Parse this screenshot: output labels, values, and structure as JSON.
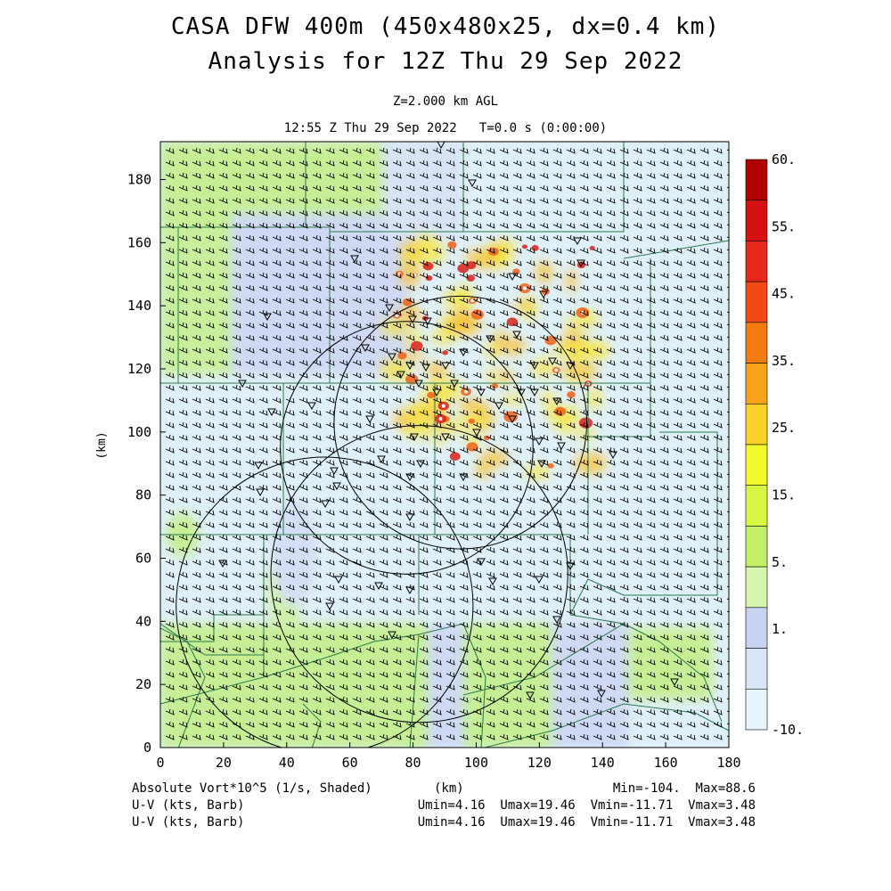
{
  "header": {
    "title_line1": "CASA DFW 400m (450x480x25, dx=0.4 km)",
    "title_line2": "Analysis for 12Z Thu 29 Sep 2022",
    "level": "Z=2.000 km AGL",
    "valid_time": "12:55 Z Thu 29 Sep 2022   T=0.0 s (0:00:00)"
  },
  "axes": {
    "x_label": "(km)",
    "y_label": "(km)",
    "x_range": [
      0,
      180
    ],
    "y_range": [
      0,
      192
    ],
    "x_ticks": [
      "0",
      "20",
      "40",
      "60",
      "80",
      "100",
      "120",
      "140",
      "160",
      "180"
    ],
    "y_ticks": [
      "0",
      "20",
      "40",
      "60",
      "80",
      "100",
      "120",
      "140",
      "160",
      "180"
    ]
  },
  "colorbar": {
    "labels": [
      "60.",
      "55.",
      "45.",
      "35.",
      "25.",
      "15.",
      "5.",
      "1.",
      "-10."
    ],
    "colors": [
      "#b00000",
      "#d41010",
      "#e8281a",
      "#f24a14",
      "#f57a10",
      "#f9a31a",
      "#fad228",
      "#f4f92e",
      "#d8f745",
      "#c2f066",
      "#d6f6b0",
      "#c6d4f2",
      "#d8e6f6",
      "#e6f4fb"
    ]
  },
  "footer": {
    "field1": "Absolute Vort*10^5 (1/s, Shaded)",
    "field1_axis": "(km)",
    "field1_stats": "Min=-104.  Max=88.6",
    "field2": "U-V (kts, Barb)",
    "field2_stats": "Umin=4.16  Umax=19.46  Vmin=-11.71  Vmax=3.48",
    "field3": "U-V (kts, Barb)",
    "field3_stats": "Umin=4.16  Umax=19.46  Vmin=-11.71  Vmax=3.48"
  },
  "map": {
    "radar_rings": [
      {
        "cx_km": 95,
        "cy_km": 103,
        "r_km": 40
      },
      {
        "cx_km": 78,
        "cy_km": 95,
        "r_km": 40
      },
      {
        "cx_km": 82,
        "cy_km": 55,
        "r_km": 47
      },
      {
        "cx_km": 52,
        "cy_km": 45,
        "r_km": 47
      }
    ]
  }
}
